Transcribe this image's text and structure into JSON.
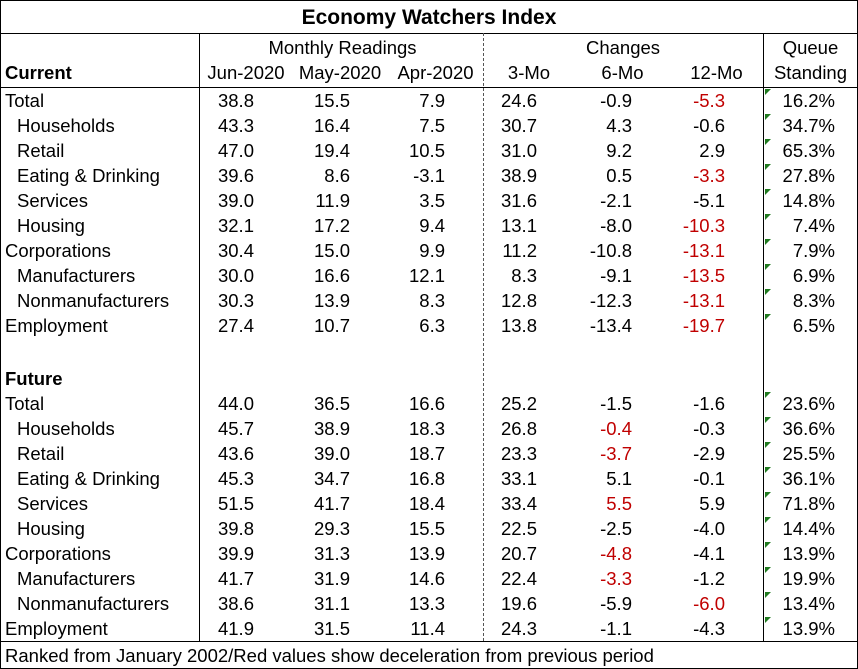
{
  "title": "Economy Watchers Index",
  "headers": {
    "group_monthly": "Monthly Readings",
    "group_changes": "Changes",
    "group_queue_line1": "Queue",
    "group_queue_line2": "Standing",
    "section_current": "Current",
    "section_future": "Future",
    "columns": [
      "Jun-2020",
      "May-2020",
      "Apr-2020",
      "3-Mo",
      "6-Mo",
      "12-Mo"
    ]
  },
  "current": [
    {
      "label": "Total",
      "indent": false,
      "jun": "38.8",
      "may": "15.5",
      "apr": "7.9",
      "m3": "24.6",
      "m6": "-0.9",
      "m12": "-5.3",
      "queue": "16.2%",
      "red": [
        "m12"
      ]
    },
    {
      "label": "Households",
      "indent": true,
      "jun": "43.3",
      "may": "16.4",
      "apr": "7.5",
      "m3": "30.7",
      "m6": "4.3",
      "m12": "-0.6",
      "queue": "34.7%",
      "red": []
    },
    {
      "label": "Retail",
      "indent": true,
      "jun": "47.0",
      "may": "19.4",
      "apr": "10.5",
      "m3": "31.0",
      "m6": "9.2",
      "m12": "2.9",
      "queue": "65.3%",
      "red": []
    },
    {
      "label": "Eating & Drinking",
      "indent": true,
      "jun": "39.6",
      "may": "8.6",
      "apr": "-3.1",
      "m3": "38.9",
      "m6": "0.5",
      "m12": "-3.3",
      "queue": "27.8%",
      "red": [
        "m12"
      ]
    },
    {
      "label": "Services",
      "indent": true,
      "jun": "39.0",
      "may": "11.9",
      "apr": "3.5",
      "m3": "31.6",
      "m6": "-2.1",
      "m12": "-5.1",
      "queue": "14.8%",
      "red": []
    },
    {
      "label": "Housing",
      "indent": true,
      "jun": "32.1",
      "may": "17.2",
      "apr": "9.4",
      "m3": "13.1",
      "m6": "-8.0",
      "m12": "-10.3",
      "queue": "7.4%",
      "red": [
        "m12"
      ]
    },
    {
      "label": "Corporations",
      "indent": false,
      "jun": "30.4",
      "may": "15.0",
      "apr": "9.9",
      "m3": "11.2",
      "m6": "-10.8",
      "m12": "-13.1",
      "queue": "7.9%",
      "red": [
        "m12"
      ]
    },
    {
      "label": "Manufacturers",
      "indent": true,
      "jun": "30.0",
      "may": "16.6",
      "apr": "12.1",
      "m3": "8.3",
      "m6": "-9.1",
      "m12": "-13.5",
      "queue": "6.9%",
      "red": [
        "m12"
      ]
    },
    {
      "label": "Nonmanufacturers",
      "indent": true,
      "jun": "30.3",
      "may": "13.9",
      "apr": "8.3",
      "m3": "12.8",
      "m6": "-12.3",
      "m12": "-13.1",
      "queue": "8.3%",
      "red": [
        "m12"
      ]
    },
    {
      "label": "Employment",
      "indent": false,
      "jun": "27.4",
      "may": "10.7",
      "apr": "6.3",
      "m3": "13.8",
      "m6": "-13.4",
      "m12": "-19.7",
      "queue": "6.5%",
      "red": [
        "m12"
      ]
    }
  ],
  "future": [
    {
      "label": "Total",
      "indent": false,
      "jun": "44.0",
      "may": "36.5",
      "apr": "16.6",
      "m3": "25.2",
      "m6": "-1.5",
      "m12": "-1.6",
      "queue": "23.6%",
      "red": []
    },
    {
      "label": "Households",
      "indent": true,
      "jun": "45.7",
      "may": "38.9",
      "apr": "18.3",
      "m3": "26.8",
      "m6": "-0.4",
      "m12": "-0.3",
      "queue": "36.6%",
      "red": [
        "m6"
      ]
    },
    {
      "label": "Retail",
      "indent": true,
      "jun": "43.6",
      "may": "39.0",
      "apr": "18.7",
      "m3": "23.3",
      "m6": "-3.7",
      "m12": "-2.9",
      "queue": "25.5%",
      "red": [
        "m6"
      ]
    },
    {
      "label": "Eating & Drinking",
      "indent": true,
      "jun": "45.3",
      "may": "34.7",
      "apr": "16.8",
      "m3": "33.1",
      "m6": "5.1",
      "m12": "-0.1",
      "queue": "36.1%",
      "red": []
    },
    {
      "label": "Services",
      "indent": true,
      "jun": "51.5",
      "may": "41.7",
      "apr": "18.4",
      "m3": "33.4",
      "m6": "5.5",
      "m12": "5.9",
      "queue": "71.8%",
      "red": [
        "m6"
      ]
    },
    {
      "label": "Housing",
      "indent": true,
      "jun": "39.8",
      "may": "29.3",
      "apr": "15.5",
      "m3": "22.5",
      "m6": "-2.5",
      "m12": "-4.0",
      "queue": "14.4%",
      "red": []
    },
    {
      "label": "Corporations",
      "indent": false,
      "jun": "39.9",
      "may": "31.3",
      "apr": "13.9",
      "m3": "20.7",
      "m6": "-4.8",
      "m12": "-4.1",
      "queue": "13.9%",
      "red": [
        "m6"
      ]
    },
    {
      "label": "Manufacturers",
      "indent": true,
      "jun": "41.7",
      "may": "31.9",
      "apr": "14.6",
      "m3": "22.4",
      "m6": "-3.3",
      "m12": "-1.2",
      "queue": "19.9%",
      "red": [
        "m6"
      ]
    },
    {
      "label": "Nonmanufacturers",
      "indent": true,
      "jun": "38.6",
      "may": "31.1",
      "apr": "13.3",
      "m3": "19.6",
      "m6": "-5.9",
      "m12": "-6.0",
      "queue": "13.4%",
      "red": [
        "m12"
      ]
    },
    {
      "label": "Employment",
      "indent": false,
      "jun": "41.9",
      "may": "31.5",
      "apr": "11.4",
      "m3": "24.3",
      "m6": "-1.1",
      "m12": "-4.3",
      "queue": "13.9%",
      "red": []
    }
  ],
  "footer": "Ranked from January 2002/Red values show deceleration from previous period",
  "colors": {
    "negative_change": "#c00000",
    "cell_marker": "#1f7a1f"
  }
}
